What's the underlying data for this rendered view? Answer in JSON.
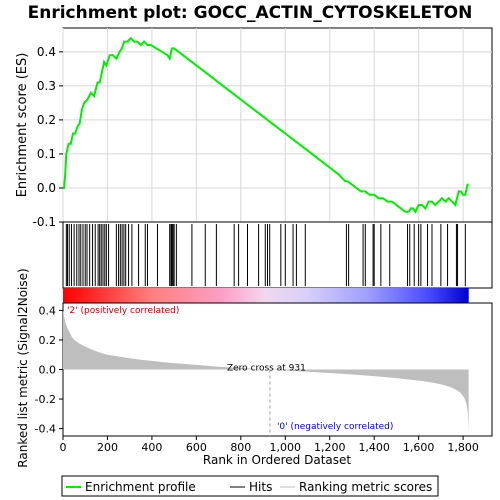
{
  "chart_data": {
    "type": "line",
    "title": "Enrichment plot: GOCC_ACTIN_CYTOSKELETON",
    "xlabel": "Rank in Ordered Dataset",
    "xlim": [
      0,
      1930
    ],
    "x_ticks": [
      0,
      200,
      400,
      600,
      800,
      1000,
      1200,
      1400,
      1600,
      1800
    ],
    "x_tick_labels": [
      "0",
      "200",
      "400",
      "600",
      "800",
      "1,000",
      "1,200",
      "1,400",
      "1,600",
      "1,800"
    ],
    "top_panel": {
      "ylabel": "Enrichment score (ES)",
      "ylim": [
        -0.1,
        0.47
      ],
      "y_ticks": [
        -0.1,
        0.0,
        0.1,
        0.2,
        0.3,
        0.4
      ],
      "y_tick_labels": [
        "-0.1",
        "0.0",
        "0.1",
        "0.2",
        "0.3",
        "0.4"
      ],
      "grid": true,
      "series": [
        {
          "name": "Enrichment profile",
          "color": "#00ee00",
          "x": [
            0,
            5,
            10,
            15,
            25,
            35,
            45,
            55,
            65,
            75,
            85,
            95,
            110,
            125,
            140,
            155,
            165,
            175,
            185,
            195,
            210,
            225,
            240,
            255,
            265,
            275,
            290,
            305,
            320,
            335,
            350,
            365,
            380,
            395,
            420,
            445,
            470,
            480,
            490,
            500,
            520,
            560,
            600,
            640,
            680,
            720,
            760,
            800,
            840,
            880,
            920,
            960,
            1000,
            1040,
            1080,
            1120,
            1160,
            1200,
            1240,
            1270,
            1280,
            1300,
            1320,
            1340,
            1360,
            1380,
            1400,
            1420,
            1440,
            1460,
            1480,
            1500,
            1520,
            1540,
            1555,
            1565,
            1575,
            1585,
            1600,
            1615,
            1630,
            1645,
            1660,
            1675,
            1690,
            1705,
            1720,
            1735,
            1750,
            1765,
            1780,
            1790,
            1800,
            1810,
            1820,
            1825
          ],
          "y": [
            0.0,
            0.0,
            0.04,
            0.1,
            0.13,
            0.13,
            0.16,
            0.16,
            0.18,
            0.19,
            0.23,
            0.25,
            0.26,
            0.28,
            0.27,
            0.31,
            0.31,
            0.34,
            0.37,
            0.36,
            0.39,
            0.39,
            0.38,
            0.4,
            0.41,
            0.43,
            0.43,
            0.44,
            0.43,
            0.43,
            0.42,
            0.43,
            0.42,
            0.42,
            0.41,
            0.4,
            0.39,
            0.38,
            0.41,
            0.41,
            0.4,
            0.38,
            0.36,
            0.34,
            0.32,
            0.3,
            0.28,
            0.26,
            0.24,
            0.22,
            0.2,
            0.18,
            0.16,
            0.14,
            0.12,
            0.1,
            0.08,
            0.06,
            0.04,
            0.02,
            0.02,
            0.01,
            0.0,
            -0.01,
            -0.01,
            -0.02,
            -0.02,
            -0.03,
            -0.03,
            -0.04,
            -0.04,
            -0.05,
            -0.06,
            -0.07,
            -0.07,
            -0.06,
            -0.06,
            -0.07,
            -0.05,
            -0.05,
            -0.06,
            -0.04,
            -0.04,
            -0.05,
            -0.04,
            -0.03,
            -0.04,
            -0.03,
            -0.04,
            -0.05,
            -0.01,
            -0.01,
            -0.02,
            -0.02,
            0.01,
            0.01
          ]
        }
      ]
    },
    "hits_panel": {
      "series_name": "Hits",
      "x": [
        15,
        20,
        28,
        38,
        50,
        62,
        72,
        80,
        90,
        100,
        108,
        120,
        133,
        145,
        158,
        165,
        172,
        180,
        188,
        195,
        205,
        240,
        250,
        258,
        266,
        274,
        282,
        295,
        310,
        340,
        370,
        380,
        425,
        480,
        486,
        490,
        495,
        500,
        510,
        580,
        640,
        690,
        770,
        790,
        830,
        880,
        910,
        920,
        930,
        980,
        1000,
        1035,
        1050,
        1090,
        1275,
        1285,
        1350,
        1360,
        1395,
        1400,
        1430,
        1470,
        1550,
        1560,
        1580,
        1600,
        1610,
        1640,
        1660,
        1700,
        1730,
        1770,
        1775,
        1810
      ]
    },
    "bottom_panel": {
      "ylabel": "Ranked list metric (Signal2Noise)",
      "ylim": [
        -0.45,
        0.45
      ],
      "y_ticks": [
        -0.4,
        -0.2,
        0.0,
        0.2,
        0.4
      ],
      "y_tick_labels": [
        "-0.4",
        "-0.2",
        "0.0",
        "0.2",
        "0.4"
      ],
      "series_name": "Ranking metric scores",
      "x": [
        0,
        5,
        10,
        20,
        30,
        40,
        50,
        60,
        80,
        100,
        130,
        160,
        200,
        250,
        300,
        350,
        400,
        450,
        500,
        550,
        600,
        650,
        700,
        750,
        800,
        850,
        900,
        931,
        1000,
        1100,
        1200,
        1300,
        1400,
        1500,
        1600,
        1650,
        1700,
        1740,
        1770,
        1790,
        1805,
        1815,
        1822,
        1825
      ],
      "y": [
        0.4,
        0.36,
        0.32,
        0.28,
        0.25,
        0.22,
        0.2,
        0.19,
        0.17,
        0.155,
        0.135,
        0.118,
        0.1,
        0.088,
        0.076,
        0.066,
        0.058,
        0.05,
        0.043,
        0.037,
        0.031,
        0.025,
        0.019,
        0.014,
        0.01,
        0.006,
        0.002,
        0.0,
        -0.006,
        -0.015,
        -0.024,
        -0.034,
        -0.045,
        -0.058,
        -0.075,
        -0.085,
        -0.1,
        -0.118,
        -0.138,
        -0.16,
        -0.19,
        -0.23,
        -0.3,
        -0.42
      ]
    },
    "annotations": {
      "zero_cross": "Zero cross at 931",
      "zero_cross_x": 931,
      "positive": "'2' (positively correlated)",
      "negative": "'0' (negatively correlated)"
    },
    "legend": {
      "placement": "bottom",
      "entries": [
        "Enrichment profile",
        "Hits",
        "Ranking metric scores"
      ]
    },
    "colors": {
      "profile": "#00ee00",
      "hits": "#000000",
      "metric_fill": "#bebebe",
      "positive_label": "#cc0000",
      "negative_label": "#0000cc"
    }
  }
}
